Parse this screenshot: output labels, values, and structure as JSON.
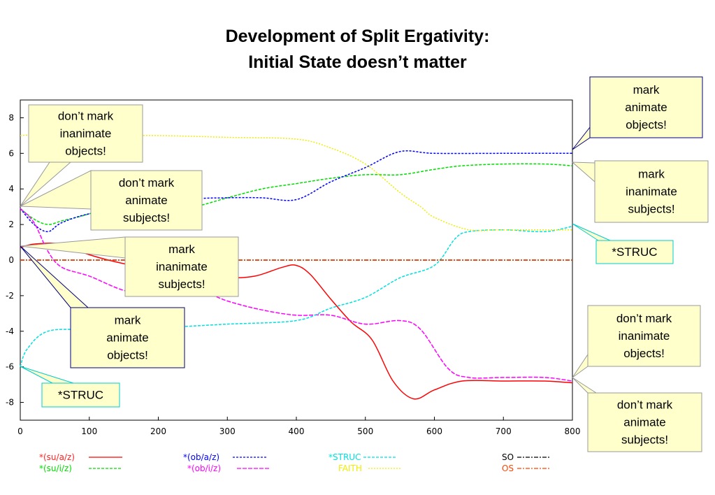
{
  "chart_data": {
    "type": "line",
    "title": [
      "Development of Split Ergativity:",
      "Initial State doesn’t matter"
    ],
    "xlabel": "",
    "ylabel": "",
    "xlim": [
      0,
      800
    ],
    "ylim": [
      -9,
      9
    ],
    "xticks": [
      "0",
      "100",
      "200",
      "300",
      "400",
      "500",
      "600",
      "700",
      "800"
    ],
    "yticks": [
      "8",
      "6",
      "4",
      "2",
      "0",
      "-2",
      "-4",
      "-6",
      "-8"
    ],
    "grid": false,
    "legend_position": "bottom",
    "series": [
      {
        "name": "*(su/a/z)",
        "color": "#ff0000",
        "dash": "",
        "x": [
          0,
          20,
          60,
          100,
          150,
          200,
          250,
          300,
          340,
          380,
          400,
          420,
          450,
          480,
          510,
          540,
          570,
          600,
          640,
          700,
          760,
          800
        ],
        "y": [
          0.7,
          0.9,
          0.9,
          0.3,
          -0.2,
          -0.5,
          -0.9,
          -1.0,
          -0.9,
          -0.4,
          -0.3,
          -0.8,
          -2.2,
          -3.5,
          -4.5,
          -6.8,
          -7.8,
          -7.3,
          -6.8,
          -6.8,
          -6.8,
          -6.9
        ]
      },
      {
        "name": "*(su/i/z)",
        "color": "#00dd00",
        "dash": "4,2",
        "x": [
          0,
          20,
          40,
          60,
          100,
          150,
          170,
          200,
          250,
          300,
          350,
          400,
          450,
          500,
          550,
          600,
          640,
          700,
          760,
          800
        ],
        "y": [
          2.9,
          2.3,
          2.0,
          2.2,
          2.6,
          3.3,
          3.5,
          3.0,
          3.0,
          3.5,
          4.0,
          4.3,
          4.6,
          4.8,
          4.8,
          5.1,
          5.3,
          5.4,
          5.4,
          5.3
        ]
      },
      {
        "name": "*(ob/a/z)",
        "color": "#0000ff",
        "dash": "3,2",
        "x": [
          0,
          20,
          40,
          60,
          100,
          150,
          200,
          250,
          300,
          350,
          400,
          450,
          500,
          550,
          600,
          700,
          800
        ],
        "y": [
          2.9,
          2.0,
          1.6,
          2.1,
          2.6,
          2.8,
          2.8,
          3.4,
          3.5,
          3.5,
          3.4,
          4.4,
          5.2,
          6.1,
          6.0,
          6.0,
          6.0
        ]
      },
      {
        "name": "*(ob/i/z)",
        "color": "#ff00ff",
        "dash": "6,2",
        "x": [
          0,
          20,
          40,
          60,
          100,
          150,
          200,
          250,
          300,
          350,
          400,
          450,
          500,
          550,
          580,
          620,
          650,
          700,
          760,
          800
        ],
        "y": [
          2.9,
          2.1,
          0.5,
          -0.4,
          -0.9,
          -1.7,
          -2.0,
          -1.6,
          -2.3,
          -2.8,
          -3.1,
          -3.1,
          -3.6,
          -3.4,
          -3.9,
          -6.1,
          -6.6,
          -6.6,
          -6.6,
          -6.8
        ]
      },
      {
        "name": "*STRUC",
        "color": "#00e0e0",
        "dash": "4,2",
        "x": [
          0,
          10,
          40,
          100,
          200,
          300,
          400,
          450,
          500,
          550,
          600,
          630,
          650,
          700,
          760,
          800
        ],
        "y": [
          -6.0,
          -5.0,
          -4.0,
          -3.9,
          -3.8,
          -3.6,
          -3.4,
          -2.7,
          -2.1,
          -1.0,
          -0.3,
          1.2,
          1.6,
          1.7,
          1.6,
          1.9
        ]
      },
      {
        "name": "FAITH",
        "color": "#eeee00",
        "dash": "2,2",
        "x": [
          0,
          50,
          100,
          200,
          300,
          400,
          450,
          500,
          550,
          580,
          600,
          650,
          700,
          800
        ],
        "y": [
          7.0,
          7.1,
          7.0,
          7.0,
          6.9,
          6.8,
          6.3,
          5.4,
          3.8,
          3.0,
          2.4,
          1.7,
          1.7,
          1.7
        ]
      },
      {
        "name": "SO",
        "color": "#000000",
        "dash": "6,2,2,2",
        "x": [
          0,
          800
        ],
        "y": [
          0.0,
          0.0
        ]
      },
      {
        "name": "OS",
        "color": "#ff4400",
        "dash": "6,2,2,2",
        "x": [
          0,
          800
        ],
        "y": [
          0.0,
          0.0
        ]
      }
    ],
    "annotations": [
      {
        "lines": [
          "don’t mark",
          "inanimate",
          "objects!"
        ],
        "fill": "#ffffcc",
        "border": "#999999"
      },
      {
        "lines": [
          "don’t mark",
          "animate",
          "subjects!"
        ],
        "fill": "#ffffcc",
        "border": "#999999"
      },
      {
        "lines": [
          "mark",
          "inanimate",
          "subjects!"
        ],
        "fill": "#ffffcc",
        "border": "#999999"
      },
      {
        "lines": [
          "mark",
          "animate",
          "objects!"
        ],
        "fill": "#ffffcc",
        "border": "#000080"
      },
      {
        "lines": [
          "*STRUC"
        ],
        "fill": "#ffffcc",
        "border": "#00cccc"
      },
      {
        "lines": [
          "mark",
          "animate",
          "objects!"
        ],
        "fill": "#ffffcc",
        "border": "#000080"
      },
      {
        "lines": [
          "mark",
          "inanimate",
          "subjects!"
        ],
        "fill": "#ffffcc",
        "border": "#999999"
      },
      {
        "lines": [
          "*STRUC"
        ],
        "fill": "#ffffcc",
        "border": "#00cccc"
      },
      {
        "lines": [
          "don’t mark",
          "inanimate",
          "objects!"
        ],
        "fill": "#ffffcc",
        "border": "#999999"
      },
      {
        "lines": [
          "don’t mark",
          "animate",
          "subjects!"
        ],
        "fill": "#ffffcc",
        "border": "#999999"
      }
    ]
  }
}
